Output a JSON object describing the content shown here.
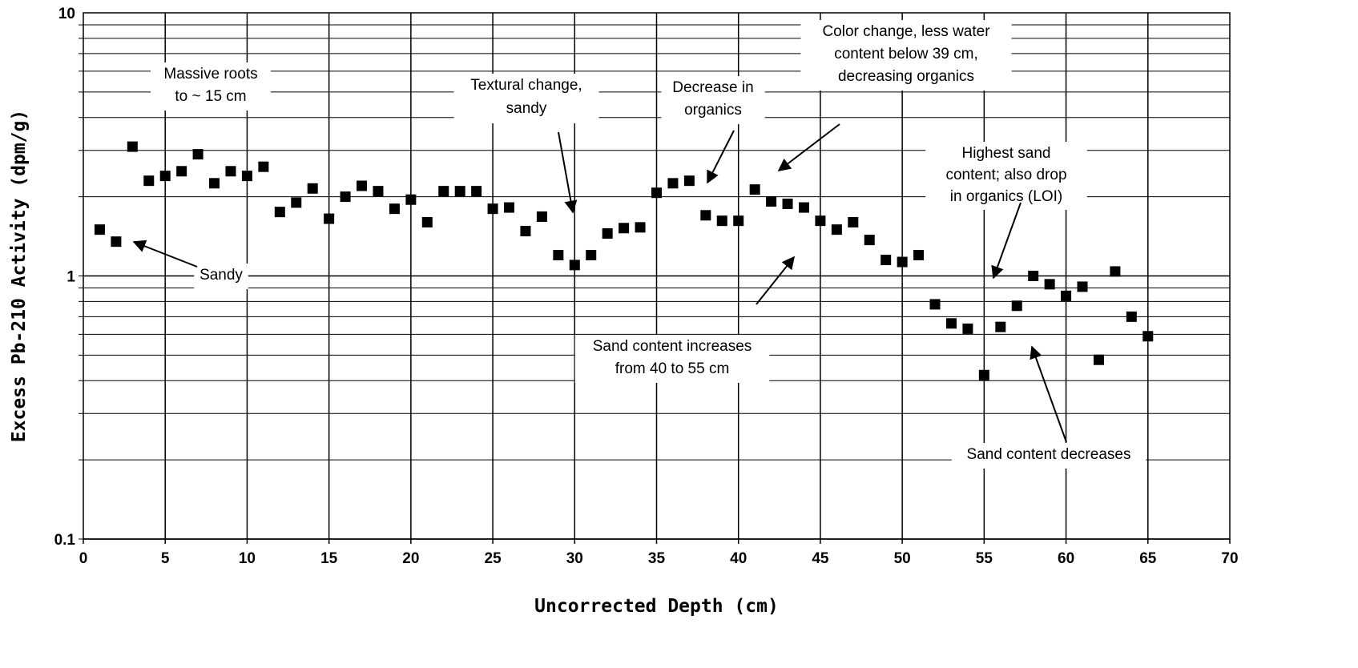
{
  "chart_data": {
    "type": "scatter",
    "xlabel": "Uncorrected Depth (cm)",
    "ylabel": "Excess Pb-210 Activity (dpm/g)",
    "xlim": [
      0,
      70
    ],
    "ylim": [
      0.1,
      10
    ],
    "y_scale": "log",
    "grid": "on",
    "marker_color": "#000000",
    "x_ticks": [
      "0",
      "5",
      "10",
      "15",
      "20",
      "25",
      "30",
      "35",
      "40",
      "45",
      "50",
      "55",
      "60",
      "65",
      "70"
    ],
    "y_ticks": [
      "0.1",
      "1",
      "10"
    ],
    "points": [
      {
        "x": 1,
        "y": 1.5
      },
      {
        "x": 2,
        "y": 1.35
      },
      {
        "x": 3,
        "y": 3.1
      },
      {
        "x": 4,
        "y": 2.3
      },
      {
        "x": 5,
        "y": 2.4
      },
      {
        "x": 6,
        "y": 2.5
      },
      {
        "x": 7,
        "y": 2.9
      },
      {
        "x": 8,
        "y": 2.25
      },
      {
        "x": 9,
        "y": 2.5
      },
      {
        "x": 10,
        "y": 2.4
      },
      {
        "x": 11,
        "y": 2.6
      },
      {
        "x": 12,
        "y": 1.75
      },
      {
        "x": 13,
        "y": 1.9
      },
      {
        "x": 14,
        "y": 2.15
      },
      {
        "x": 15,
        "y": 1.65
      },
      {
        "x": 16,
        "y": 2.0
      },
      {
        "x": 17,
        "y": 2.2
      },
      {
        "x": 18,
        "y": 2.1
      },
      {
        "x": 19,
        "y": 1.8
      },
      {
        "x": 20,
        "y": 1.95
      },
      {
        "x": 21,
        "y": 1.6
      },
      {
        "x": 22,
        "y": 2.1
      },
      {
        "x": 23,
        "y": 2.1
      },
      {
        "x": 24,
        "y": 2.1
      },
      {
        "x": 25,
        "y": 1.8
      },
      {
        "x": 26,
        "y": 1.82
      },
      {
        "x": 27,
        "y": 1.48
      },
      {
        "x": 28,
        "y": 1.68
      },
      {
        "x": 29,
        "y": 1.2
      },
      {
        "x": 30,
        "y": 1.1
      },
      {
        "x": 31,
        "y": 1.2
      },
      {
        "x": 32,
        "y": 1.45
      },
      {
        "x": 33,
        "y": 1.52
      },
      {
        "x": 34,
        "y": 1.53
      },
      {
        "x": 35,
        "y": 2.07
      },
      {
        "x": 36,
        "y": 2.25
      },
      {
        "x": 37,
        "y": 2.3
      },
      {
        "x": 38,
        "y": 1.7
      },
      {
        "x": 39,
        "y": 1.62
      },
      {
        "x": 40,
        "y": 1.62
      },
      {
        "x": 41,
        "y": 2.13
      },
      {
        "x": 42,
        "y": 1.92
      },
      {
        "x": 43,
        "y": 1.88
      },
      {
        "x": 44,
        "y": 1.82
      },
      {
        "x": 45,
        "y": 1.62
      },
      {
        "x": 46,
        "y": 1.5
      },
      {
        "x": 47,
        "y": 1.6
      },
      {
        "x": 48,
        "y": 1.37
      },
      {
        "x": 49,
        "y": 1.15
      },
      {
        "x": 50,
        "y": 1.13
      },
      {
        "x": 51,
        "y": 1.2
      },
      {
        "x": 52,
        "y": 0.78
      },
      {
        "x": 53,
        "y": 0.66
      },
      {
        "x": 54,
        "y": 0.63
      },
      {
        "x": 55,
        "y": 0.42
      },
      {
        "x": 56,
        "y": 0.64
      },
      {
        "x": 57,
        "y": 0.77
      },
      {
        "x": 58,
        "y": 1.0
      },
      {
        "x": 59,
        "y": 0.93
      },
      {
        "x": 60,
        "y": 0.84
      },
      {
        "x": 61,
        "y": 0.91
      },
      {
        "x": 62,
        "y": 0.48
      },
      {
        "x": 63,
        "y": 1.04
      },
      {
        "x": 64,
        "y": 0.7
      },
      {
        "x": 65,
        "y": 0.59
      }
    ],
    "annotations": [
      {
        "lines": [
          "Massive roots",
          "to ~ 15 cm"
        ]
      },
      {
        "lines": [
          "Sandy"
        ]
      },
      {
        "lines": [
          "Textural change,",
          "sandy"
        ]
      },
      {
        "lines": [
          "Decrease in",
          "organics"
        ]
      },
      {
        "lines": [
          "Color change, less water",
          "content below 39 cm,",
          "decreasing organics"
        ]
      },
      {
        "lines": [
          "Highest sand",
          "content; also drop",
          "in organics (LOI)"
        ]
      },
      {
        "lines": [
          "Sand content increases",
          "from 40 to 55 cm"
        ]
      },
      {
        "lines": [
          "Sand content decreases"
        ]
      }
    ]
  }
}
